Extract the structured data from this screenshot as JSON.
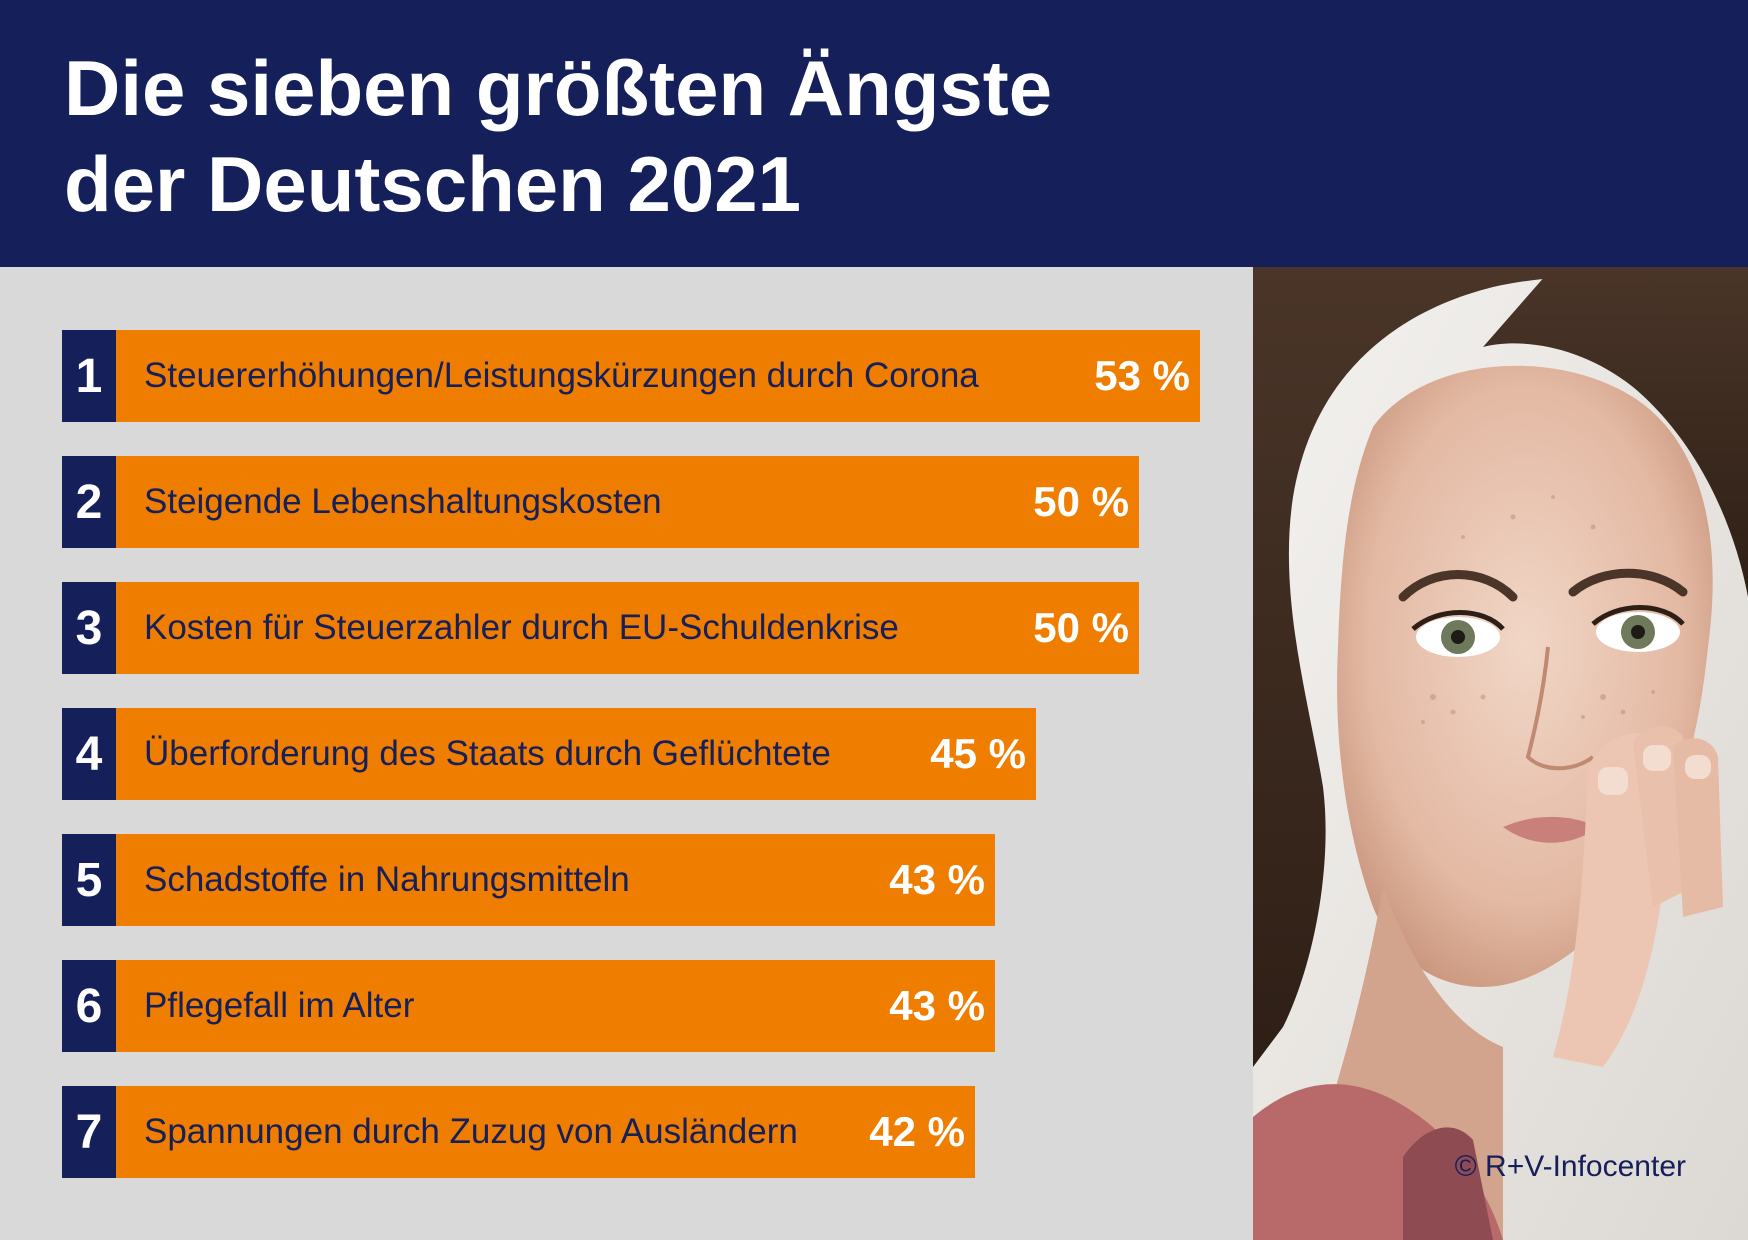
{
  "header": {
    "title_line1": "Die sieben größten Ängste",
    "title_line2": "der Deutschen 2021"
  },
  "chart_data": {
    "type": "bar",
    "orientation": "horizontal",
    "title": "Die sieben größten Ängste der Deutschen 2021",
    "categories": [
      "Steuererhöhungen/Leistungskürzungen durch Corona",
      "Steigende Lebenshaltungskosten",
      "Kosten für Steuerzahler durch EU-Schuldenkrise",
      "Überforderung des Staats durch Geflüchtete",
      "Schadstoffe in Nahrungsmitteln",
      "Pflegefall im Alter",
      "Spannungen durch Zuzug von Ausländern"
    ],
    "values": [
      53,
      50,
      50,
      45,
      43,
      43,
      42
    ],
    "ranks": [
      "1",
      "2",
      "3",
      "4",
      "5",
      "6",
      "7"
    ],
    "value_labels": [
      "53 %",
      "50 %",
      "50 %",
      "45 %",
      "43 %",
      "43 %",
      "42 %"
    ],
    "unit": "%",
    "bar_color": "#ef7d00",
    "rank_color": "#151f5a"
  },
  "photo": {
    "description": "woman-photo"
  },
  "credit": {
    "text": "© R+V-Infocenter"
  },
  "colors": {
    "navy": "#151f5a",
    "orange": "#ef7d00",
    "background": "#d9d9d9"
  }
}
